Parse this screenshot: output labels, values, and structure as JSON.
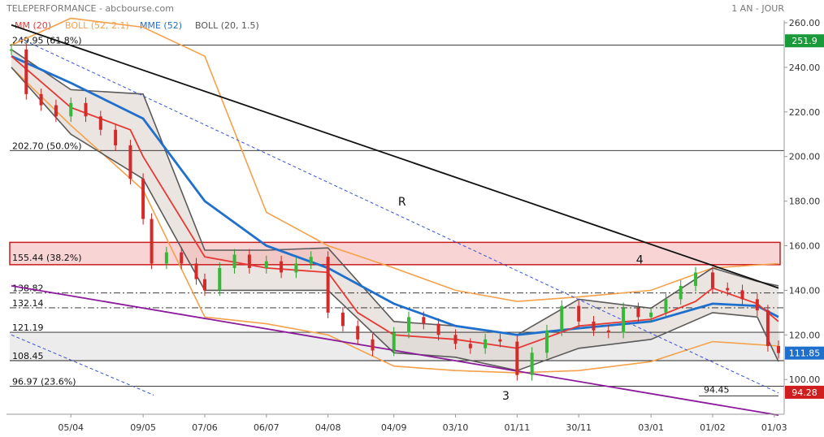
{
  "header": {
    "title": "TELEPERFORMANCE - abcbourse.com",
    "period": "1 AN - JOUR",
    "legend": [
      {
        "label": "MM (20)",
        "color": "#e53935"
      },
      {
        "label": "BOLL (52, 2.1)",
        "color": "#f5a04a"
      },
      {
        "label": "MME (52)",
        "color": "#1f6fcc"
      },
      {
        "label": "BOLL (20, 1.5)",
        "color": "#555555"
      }
    ]
  },
  "chart_data": {
    "type": "candlestick",
    "ylim": [
      93,
      265
    ],
    "yticks": [
      "100.00",
      "120.00",
      "140.00",
      "160.00",
      "180.00",
      "200.00",
      "220.00",
      "240.00",
      "260.00"
    ],
    "ytick_values": [
      100,
      120,
      140,
      160,
      180,
      200,
      220,
      240,
      260
    ],
    "xticks": [
      "05/04",
      "09/05",
      "07/06",
      "06/07",
      "04/08",
      "04/09",
      "03/10",
      "01/11",
      "30/11",
      "03/01",
      "01/02",
      "01/03"
    ],
    "levels": [
      {
        "label": "249.95  (61.8%)",
        "value": 249.95,
        "style": "solid"
      },
      {
        "label": "202.70  (50.0%)",
        "value": 202.7,
        "style": "solid"
      },
      {
        "label": "155.44  (38.2%)",
        "value": 155.44,
        "style": "zone"
      },
      {
        "label": "138.82",
        "value": 138.82,
        "style": "dashdot"
      },
      {
        "label": "132.14",
        "value": 132.14,
        "style": "dashdot"
      },
      {
        "label": "121.19",
        "value": 121.19,
        "style": "solid"
      },
      {
        "label": "108.45",
        "value": 108.45,
        "style": "solid"
      },
      {
        "label": "96.97  (23.6%)",
        "value": 96.97,
        "style": "solid"
      },
      {
        "label": "94.45",
        "value": 94.45,
        "style": "short"
      }
    ],
    "zone": {
      "low": 151.5,
      "high": 161.5
    },
    "grey_band": {
      "low": 108.45,
      "high": 121.19
    },
    "price_tags": [
      {
        "label": "251.9",
        "value": 251.9,
        "color": "#1a9a3a"
      },
      {
        "label": "111.85",
        "value": 111.85,
        "color": "#1f6fcc"
      },
      {
        "label": "94.28",
        "value": 94.28,
        "color": "#d01e1e"
      }
    ],
    "annotations": [
      {
        "text": "R",
        "x": "06/09",
        "y": 178
      },
      {
        "text": "4",
        "x": "27/12",
        "y": 152
      },
      {
        "text": "3",
        "x": "25/10",
        "y": 91
      }
    ],
    "trendlines": [
      {
        "name": "resistance",
        "color": "#111111",
        "style": "solid",
        "x1": "08/03",
        "y1": 259,
        "x2": "03/03",
        "y2": 141
      },
      {
        "name": "support",
        "color": "#8a1a9a",
        "style": "solid",
        "x1": "08/03",
        "y1": 142,
        "x2": "03/03",
        "y2": 84
      },
      {
        "name": "channel-top",
        "color": "#3a52d6",
        "style": "dashed",
        "x1": "12/03",
        "y1": 253,
        "x2": "03/03",
        "y2": 94
      },
      {
        "name": "channel-bottom",
        "color": "#3a52d6",
        "style": "dashed",
        "x1": "08/03",
        "y1": 120,
        "x2": "14/05",
        "y2": 93
      }
    ],
    "close": [
      {
        "x": "08/03",
        "y": 248
      },
      {
        "x": "15/03",
        "y": 228
      },
      {
        "x": "22/03",
        "y": 223
      },
      {
        "x": "29/03",
        "y": 218
      },
      {
        "x": "05/04",
        "y": 224
      },
      {
        "x": "12/04",
        "y": 218
      },
      {
        "x": "19/04",
        "y": 212
      },
      {
        "x": "26/04",
        "y": 205
      },
      {
        "x": "03/05",
        "y": 190
      },
      {
        "x": "09/05",
        "y": 172
      },
      {
        "x": "13/05",
        "y": 152
      },
      {
        "x": "20/05",
        "y": 157
      },
      {
        "x": "27/05",
        "y": 152
      },
      {
        "x": "03/06",
        "y": 145
      },
      {
        "x": "07/06",
        "y": 140
      },
      {
        "x": "14/06",
        "y": 150
      },
      {
        "x": "21/06",
        "y": 156
      },
      {
        "x": "28/06",
        "y": 150
      },
      {
        "x": "06/07",
        "y": 153
      },
      {
        "x": "13/07",
        "y": 148
      },
      {
        "x": "20/07",
        "y": 152
      },
      {
        "x": "27/07",
        "y": 155
      },
      {
        "x": "04/08",
        "y": 130
      },
      {
        "x": "11/08",
        "y": 124
      },
      {
        "x": "18/08",
        "y": 118
      },
      {
        "x": "25/08",
        "y": 113
      },
      {
        "x": "04/09",
        "y": 121
      },
      {
        "x": "11/09",
        "y": 128
      },
      {
        "x": "18/09",
        "y": 125
      },
      {
        "x": "25/09",
        "y": 120
      },
      {
        "x": "03/10",
        "y": 116
      },
      {
        "x": "10/10",
        "y": 114
      },
      {
        "x": "17/10",
        "y": 118
      },
      {
        "x": "24/10",
        "y": 117
      },
      {
        "x": "01/11",
        "y": 102
      },
      {
        "x": "08/11",
        "y": 112
      },
      {
        "x": "15/11",
        "y": 122
      },
      {
        "x": "22/11",
        "y": 133
      },
      {
        "x": "30/11",
        "y": 126
      },
      {
        "x": "07/12",
        "y": 122
      },
      {
        "x": "14/12",
        "y": 121
      },
      {
        "x": "21/12",
        "y": 132
      },
      {
        "x": "28/12",
        "y": 128
      },
      {
        "x": "03/01",
        "y": 130
      },
      {
        "x": "10/01",
        "y": 136
      },
      {
        "x": "17/01",
        "y": 142
      },
      {
        "x": "24/01",
        "y": 148
      },
      {
        "x": "01/02",
        "y": 141
      },
      {
        "x": "08/02",
        "y": 140
      },
      {
        "x": "15/02",
        "y": 136
      },
      {
        "x": "22/02",
        "y": 131
      },
      {
        "x": "27/02",
        "y": 115
      },
      {
        "x": "03/03",
        "y": 111.85
      }
    ],
    "mm20": [
      {
        "x": "08/03",
        "y": 245
      },
      {
        "x": "05/04",
        "y": 222
      },
      {
        "x": "03/05",
        "y": 212
      },
      {
        "x": "09/05",
        "y": 200
      },
      {
        "x": "07/06",
        "y": 155
      },
      {
        "x": "06/07",
        "y": 150
      },
      {
        "x": "04/08",
        "y": 148
      },
      {
        "x": "18/08",
        "y": 130
      },
      {
        "x": "04/09",
        "y": 120
      },
      {
        "x": "03/10",
        "y": 118
      },
      {
        "x": "01/11",
        "y": 114
      },
      {
        "x": "30/11",
        "y": 124
      },
      {
        "x": "03/01",
        "y": 127
      },
      {
        "x": "24/01",
        "y": 135
      },
      {
        "x": "01/02",
        "y": 141
      },
      {
        "x": "22/02",
        "y": 134
      },
      {
        "x": "03/03",
        "y": 126
      }
    ],
    "mme52": [
      {
        "x": "08/03",
        "y": 245
      },
      {
        "x": "05/04",
        "y": 233
      },
      {
        "x": "09/05",
        "y": 217
      },
      {
        "x": "07/06",
        "y": 180
      },
      {
        "x": "06/07",
        "y": 160
      },
      {
        "x": "04/08",
        "y": 150
      },
      {
        "x": "04/09",
        "y": 134
      },
      {
        "x": "03/10",
        "y": 124
      },
      {
        "x": "01/11",
        "y": 120
      },
      {
        "x": "30/11",
        "y": 123
      },
      {
        "x": "03/01",
        "y": 126
      },
      {
        "x": "01/02",
        "y": 134
      },
      {
        "x": "22/02",
        "y": 133
      },
      {
        "x": "03/03",
        "y": 128
      }
    ],
    "boll52_upper": [
      {
        "x": "08/03",
        "y": 250
      },
      {
        "x": "05/04",
        "y": 262
      },
      {
        "x": "09/05",
        "y": 258
      },
      {
        "x": "07/06",
        "y": 245
      },
      {
        "x": "06/07",
        "y": 175
      },
      {
        "x": "04/08",
        "y": 160
      },
      {
        "x": "04/09",
        "y": 150
      },
      {
        "x": "03/10",
        "y": 140
      },
      {
        "x": "01/11",
        "y": 135
      },
      {
        "x": "30/11",
        "y": 137
      },
      {
        "x": "03/01",
        "y": 140
      },
      {
        "x": "01/02",
        "y": 150
      },
      {
        "x": "03/03",
        "y": 152
      }
    ],
    "boll52_lower": [
      {
        "x": "08/03",
        "y": 240
      },
      {
        "x": "05/04",
        "y": 214
      },
      {
        "x": "09/05",
        "y": 185
      },
      {
        "x": "07/06",
        "y": 128
      },
      {
        "x": "06/07",
        "y": 125
      },
      {
        "x": "04/08",
        "y": 120
      },
      {
        "x": "04/09",
        "y": 106
      },
      {
        "x": "03/10",
        "y": 104
      },
      {
        "x": "01/11",
        "y": 103
      },
      {
        "x": "30/11",
        "y": 104
      },
      {
        "x": "03/01",
        "y": 108
      },
      {
        "x": "01/02",
        "y": 117
      },
      {
        "x": "03/03",
        "y": 115
      }
    ],
    "boll20_upper": [
      {
        "x": "08/03",
        "y": 248
      },
      {
        "x": "05/04",
        "y": 230
      },
      {
        "x": "09/05",
        "y": 228
      },
      {
        "x": "07/06",
        "y": 158
      },
      {
        "x": "06/07",
        "y": 158
      },
      {
        "x": "04/08",
        "y": 159
      },
      {
        "x": "04/09",
        "y": 126
      },
      {
        "x": "03/10",
        "y": 124
      },
      {
        "x": "01/11",
        "y": 120
      },
      {
        "x": "30/11",
        "y": 136
      },
      {
        "x": "03/01",
        "y": 132
      },
      {
        "x": "01/02",
        "y": 150
      },
      {
        "x": "22/02",
        "y": 144
      },
      {
        "x": "03/03",
        "y": 142
      }
    ],
    "boll20_lower": [
      {
        "x": "08/03",
        "y": 240
      },
      {
        "x": "05/04",
        "y": 210
      },
      {
        "x": "09/05",
        "y": 190
      },
      {
        "x": "07/06",
        "y": 140
      },
      {
        "x": "06/07",
        "y": 140
      },
      {
        "x": "04/08",
        "y": 140
      },
      {
        "x": "04/09",
        "y": 112
      },
      {
        "x": "03/10",
        "y": 110
      },
      {
        "x": "01/11",
        "y": 104
      },
      {
        "x": "30/11",
        "y": 114
      },
      {
        "x": "03/01",
        "y": 118
      },
      {
        "x": "01/02",
        "y": 130
      },
      {
        "x": "22/02",
        "y": 128
      },
      {
        "x": "03/03",
        "y": 108
      }
    ]
  }
}
